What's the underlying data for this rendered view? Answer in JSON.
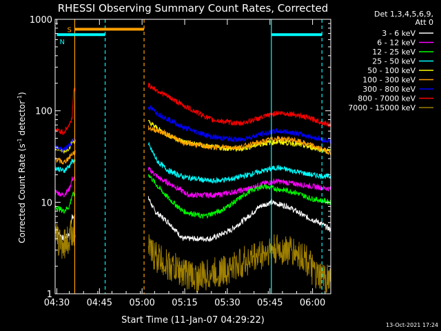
{
  "chart_data": {
    "type": "line",
    "title": "RHESSI Observing Summary Count Rates, Corrected",
    "xlabel": "Start Time (11-Jan-07 04:29:22)",
    "ylabel": "Corrected Count Rate (s",
    "ylabel_sup1": "-1",
    "ylabel_mid": " detector",
    "ylabel_sup2": "-1",
    "ylabel_end": ")",
    "y_scale": "log",
    "ylim": [
      1,
      1000
    ],
    "x_range_minutes": [
      0,
      97
    ],
    "x_ticks": [
      {
        "label": "04:30",
        "minute": 0.6
      },
      {
        "label": "04:45",
        "minute": 15.6
      },
      {
        "label": "05:00",
        "minute": 30.6
      },
      {
        "label": "05:15",
        "minute": 45.6
      },
      {
        "label": "05:30",
        "minute": 60.6
      },
      {
        "label": "05:45",
        "minute": 75.6
      },
      {
        "label": "06:00",
        "minute": 90.6
      }
    ],
    "y_ticks": [
      {
        "label": "1",
        "value": 1
      },
      {
        "label": "10",
        "value": 10
      },
      {
        "label": "100",
        "value": 100
      },
      {
        "label": "1000",
        "value": 1000
      }
    ],
    "legend_header": [
      "Det 1,3,4,5,6,9,",
      "Att 0"
    ],
    "legend_placement": "right",
    "series": [
      {
        "name": "3 - 6 keV",
        "color": "#ffffff",
        "points": [
          [
            0,
            5
          ],
          [
            3,
            4
          ],
          [
            5,
            4.5
          ],
          [
            6,
            7
          ],
          [
            33,
            11
          ],
          [
            35,
            8
          ],
          [
            40,
            6
          ],
          [
            45,
            4
          ],
          [
            55,
            4
          ],
          [
            62,
            5
          ],
          [
            68,
            7
          ],
          [
            72,
            9
          ],
          [
            76,
            10
          ],
          [
            82,
            9
          ],
          [
            88,
            7
          ],
          [
            93,
            6
          ],
          [
            97,
            5
          ]
        ]
      },
      {
        "name": "6 - 12 keV",
        "color": "#ff00ff",
        "points": [
          [
            0,
            13
          ],
          [
            3,
            12
          ],
          [
            5,
            14
          ],
          [
            6,
            18
          ],
          [
            33,
            23
          ],
          [
            37,
            18
          ],
          [
            42,
            15
          ],
          [
            47,
            12
          ],
          [
            57,
            12
          ],
          [
            63,
            13
          ],
          [
            68,
            14
          ],
          [
            73,
            16
          ],
          [
            78,
            17
          ],
          [
            84,
            16
          ],
          [
            90,
            15
          ],
          [
            97,
            14
          ]
        ]
      },
      {
        "name": "12 - 25 keV",
        "color": "#00ff00",
        "points": [
          [
            0,
            9
          ],
          [
            3,
            8
          ],
          [
            5,
            9
          ],
          [
            6,
            12
          ],
          [
            33,
            20
          ],
          [
            36,
            15
          ],
          [
            40,
            11
          ],
          [
            45,
            8
          ],
          [
            52,
            7
          ],
          [
            58,
            8
          ],
          [
            63,
            10
          ],
          [
            68,
            13
          ],
          [
            73,
            15
          ],
          [
            78,
            14
          ],
          [
            84,
            13
          ],
          [
            90,
            11
          ],
          [
            97,
            10
          ]
        ]
      },
      {
        "name": "25 - 50 keV",
        "color": "#00ffff",
        "points": [
          [
            0,
            24
          ],
          [
            3,
            22
          ],
          [
            5,
            25
          ],
          [
            6,
            28
          ],
          [
            33,
            42
          ],
          [
            36,
            28
          ],
          [
            40,
            22
          ],
          [
            45,
            19
          ],
          [
            55,
            17
          ],
          [
            62,
            18
          ],
          [
            68,
            20
          ],
          [
            73,
            22
          ],
          [
            78,
            24
          ],
          [
            84,
            22
          ],
          [
            90,
            20
          ],
          [
            97,
            19
          ]
        ]
      },
      {
        "name": "50 - 100 keV",
        "color": "#ffff00",
        "points": [
          [
            0,
            40
          ],
          [
            3,
            36
          ],
          [
            5,
            40
          ],
          [
            6,
            46
          ],
          [
            33,
            75
          ],
          [
            38,
            58
          ],
          [
            45,
            46
          ],
          [
            55,
            40
          ],
          [
            65,
            38
          ],
          [
            73,
            44
          ],
          [
            78,
            46
          ],
          [
            84,
            44
          ],
          [
            90,
            40
          ],
          [
            97,
            36
          ]
        ]
      },
      {
        "name": "100 - 300 keV",
        "color": "#ffa000",
        "points": [
          [
            0,
            30
          ],
          [
            3,
            27
          ],
          [
            5,
            31
          ],
          [
            6,
            34
          ],
          [
            33,
            65
          ],
          [
            38,
            58
          ],
          [
            45,
            45
          ],
          [
            55,
            40
          ],
          [
            65,
            40
          ],
          [
            73,
            46
          ],
          [
            78,
            50
          ],
          [
            84,
            48
          ],
          [
            90,
            42
          ],
          [
            97,
            35
          ]
        ]
      },
      {
        "name": "300 - 800 keV",
        "color": "#0000ff",
        "points": [
          [
            0,
            40
          ],
          [
            3,
            37
          ],
          [
            5,
            42
          ],
          [
            6,
            48
          ],
          [
            33,
            110
          ],
          [
            37,
            90
          ],
          [
            45,
            66
          ],
          [
            55,
            52
          ],
          [
            65,
            48
          ],
          [
            73,
            56
          ],
          [
            78,
            60
          ],
          [
            84,
            58
          ],
          [
            90,
            52
          ],
          [
            97,
            46
          ]
        ]
      },
      {
        "name": "800 - 7000 keV",
        "color": "#ff0000",
        "points": [
          [
            0,
            62
          ],
          [
            3,
            58
          ],
          [
            5,
            70
          ],
          [
            6,
            85
          ],
          [
            6.5,
            170
          ],
          [
            33,
            190
          ],
          [
            37,
            160
          ],
          [
            45,
            115
          ],
          [
            55,
            80
          ],
          [
            65,
            72
          ],
          [
            73,
            85
          ],
          [
            78,
            95
          ],
          [
            84,
            92
          ],
          [
            90,
            82
          ],
          [
            97,
            70
          ]
        ]
      },
      {
        "name": "7000 - 15000 keV",
        "color": "#a08000",
        "points": [
          [
            0,
            4
          ],
          [
            3,
            3.5
          ],
          [
            5,
            4
          ],
          [
            6,
            5
          ],
          [
            33,
            3
          ],
          [
            36,
            2.5
          ],
          [
            40,
            2
          ],
          [
            50,
            1.5
          ],
          [
            60,
            1.8
          ],
          [
            70,
            2.5
          ],
          [
            76,
            3
          ],
          [
            82,
            3
          ],
          [
            88,
            2.5
          ],
          [
            92,
            1.5
          ],
          [
            97,
            1.5
          ]
        ]
      }
    ],
    "annotations": {
      "vertical_lines": [
        {
          "minute": 6.9,
          "color": "#ffa000",
          "style": "solid"
        },
        {
          "minute": 17.6,
          "color": "#00ffff",
          "style": "dashed"
        },
        {
          "minute": 31.3,
          "color": "#ffa000",
          "style": "dashed"
        },
        {
          "minute": 76.1,
          "color": "#00ffff",
          "style": "solid"
        },
        {
          "minute": 93.9,
          "color": "#00ffff",
          "style": "dashed"
        }
      ],
      "bars": [
        {
          "label": "S",
          "color": "#ffa000",
          "start_minute": 6.9,
          "end_minute": 31.3,
          "level": 780
        },
        {
          "label": "N",
          "color": "#00ffff",
          "start_minute": 0.6,
          "end_minute": 17.6,
          "level": 680
        },
        {
          "label": "",
          "color": "#00ffff",
          "start_minute": 76.1,
          "end_minute": 93.9,
          "level": 680
        }
      ]
    },
    "timestamp": "13-Oct-2021 17:24"
  }
}
